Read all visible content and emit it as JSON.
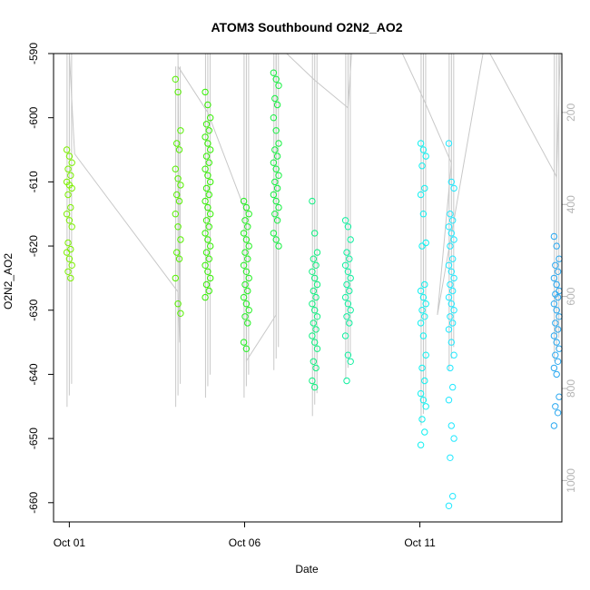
{
  "chart_data": {
    "type": "scatter",
    "title": "ATOM3 Southbound O2N2_AO2",
    "xlabel": "Date",
    "ylabel": "O2N2_AO2",
    "x_ticks": [
      "Oct 01",
      "Oct 06",
      "Oct 11"
    ],
    "x_tick_days": [
      1,
      6,
      11
    ],
    "xlim_days": [
      0.55,
      15.05
    ],
    "ylim": [
      -663,
      -590
    ],
    "y_ticks": [
      -590,
      -600,
      -610,
      -620,
      -630,
      -640,
      -650,
      -660
    ],
    "y2_ticks": [
      200,
      400,
      600,
      800,
      1000
    ],
    "y2lim": [
      72,
      1090
    ],
    "grid": false,
    "legend": "none",
    "colors": {
      "profile_lines": "#c8c8c8",
      "right_axis": "#b5b5b5"
    },
    "profiles": [
      {
        "day": 1.0,
        "y2_top": 72,
        "y2_bottom": 840,
        "color": "#7cf000",
        "values": [
          -605,
          -606,
          -607,
          -608,
          -609,
          -610,
          -610.5,
          -611,
          -612,
          -614,
          -615,
          -616,
          -617,
          -619.5,
          -620.5,
          -621,
          -622,
          -623,
          -624,
          -625
        ]
      },
      {
        "day": 4.1,
        "y2_top": 100,
        "y2_bottom": 840,
        "color": "#55f000",
        "values": [
          -594,
          -596,
          -602,
          -604,
          -605,
          -608,
          -609.5,
          -610.5,
          -612,
          -613,
          -615,
          -617,
          -619,
          -621,
          -622,
          -625,
          -629,
          -630.5
        ]
      },
      {
        "day": 4.95,
        "y2_top": 72,
        "y2_bottom": 820,
        "color": "#33f000",
        "values": [
          -596,
          -598,
          -600,
          -601,
          -602,
          -603,
          -604,
          -605,
          -606,
          -607,
          -608,
          -609,
          -610,
          -611,
          -612,
          -613,
          -614,
          -615,
          -616,
          -617,
          -618,
          -619,
          -620,
          -621,
          -622,
          -623,
          -624,
          -625,
          -626,
          -627,
          -628
        ]
      },
      {
        "day": 6.05,
        "y2_top": 72,
        "y2_bottom": 820,
        "color": "#22f020",
        "values": [
          -613,
          -614,
          -615,
          -616,
          -617,
          -618,
          -619,
          -620,
          -621,
          -622,
          -623,
          -624,
          -625,
          -626,
          -627,
          -628,
          -629,
          -630,
          -631,
          -632,
          -635,
          -636
        ]
      },
      {
        "day": 6.9,
        "y2_top": 72,
        "y2_bottom": 760,
        "color": "#15f040",
        "values": [
          -593,
          -594,
          -595,
          -597,
          -598,
          -600,
          -602,
          -604,
          -605,
          -606,
          -607,
          -608,
          -609,
          -610,
          -611,
          -612,
          -613,
          -614,
          -615,
          -616,
          -618,
          -619,
          -620
        ]
      },
      {
        "day": 8.0,
        "y2_top": 72,
        "y2_bottom": 860,
        "color": "#10f080",
        "values": [
          -613,
          -618,
          -621,
          -622,
          -623,
          -624,
          -625,
          -626,
          -627,
          -628,
          -629,
          -630,
          -631,
          -632,
          -633,
          -634,
          -635,
          -636,
          -638,
          -639,
          -641,
          -642
        ]
      },
      {
        "day": 8.95,
        "y2_top": 72,
        "y2_bottom": 780,
        "color": "#10f0a0",
        "values": [
          -616,
          -617,
          -619,
          -621,
          -622,
          -623,
          -624,
          -625,
          -626,
          -627,
          -628,
          -629,
          -630,
          -631,
          -632,
          -634,
          -637,
          -638,
          -641
        ]
      },
      {
        "day": 11.1,
        "y2_top": 72,
        "y2_bottom": 880,
        "color": "#10f0f0",
        "values": [
          -604,
          -605,
          -606,
          -607.5,
          -611,
          -612,
          -615,
          -619.5,
          -620,
          -626,
          -627,
          -628,
          -629,
          -630,
          -631,
          -632,
          -634,
          -637,
          -639,
          -641,
          -643,
          -644,
          -645,
          -647,
          -649,
          -651
        ]
      },
      {
        "day": 11.9,
        "y2_top": 72,
        "y2_bottom": 760,
        "color": "#20e8ff",
        "values": [
          -604,
          -610,
          -611,
          -615,
          -616,
          -617,
          -618,
          -619,
          -620,
          -622,
          -623,
          -624,
          -625,
          -626,
          -627,
          -628,
          -629,
          -630,
          -631,
          -632,
          -633,
          -635,
          -637,
          -639,
          -642,
          -644,
          -648,
          -650,
          -653,
          -659,
          -660.5
        ]
      },
      {
        "day": 14.9,
        "y2_top": 72,
        "y2_bottom": 740,
        "color": "#2aa8f0",
        "values": [
          -618.5,
          -620,
          -622,
          -623,
          -624,
          -625,
          -626,
          -627,
          -627.5,
          -628,
          -629,
          -630,
          -631,
          -632,
          -633,
          -634,
          -635,
          -636,
          -637,
          -638,
          -639,
          -640,
          -643.5,
          -645,
          -646,
          -648
        ]
      }
    ],
    "track_lines": [
      [
        [
          1.0,
          72
        ],
        [
          1.15,
          290
        ],
        [
          4.1,
          590
        ],
        [
          4.15,
          700
        ],
        [
          4.1,
          72
        ]
      ],
      [
        [
          4.1,
          100
        ],
        [
          4.95,
          200
        ],
        [
          6.05,
          420
        ],
        [
          6.05,
          740
        ],
        [
          6.9,
          640
        ],
        [
          6.9,
          72
        ]
      ],
      [
        [
          7.2,
          72
        ],
        [
          8.0,
          130
        ],
        [
          8.95,
          190
        ],
        [
          9.05,
          72
        ]
      ],
      [
        [
          10.5,
          72
        ],
        [
          11.1,
          170
        ],
        [
          11.9,
          310
        ],
        [
          11.5,
          640
        ],
        [
          12.8,
          72
        ]
      ],
      [
        [
          13.0,
          72
        ],
        [
          14.9,
          340
        ],
        [
          15.0,
          72
        ]
      ]
    ]
  }
}
